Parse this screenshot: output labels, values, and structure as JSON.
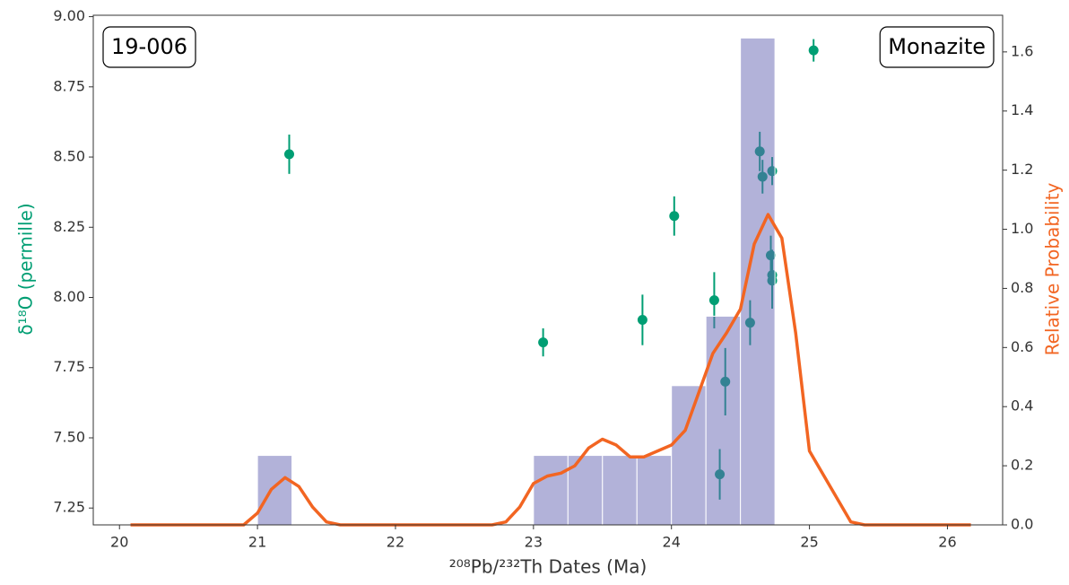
{
  "chart_data": [
    {
      "type": "scatter",
      "xlabel": "²⁰⁸Pb/²³²Th Dates (Ma)",
      "ylabel": "δ¹⁸O (permille)",
      "annotations": [
        "19-006",
        "Monazite"
      ],
      "xlim": [
        19.81,
        26.4
      ],
      "xticks": [
        20,
        21,
        22,
        23,
        24,
        25,
        26
      ],
      "ylim": [
        7.19,
        9.005
      ],
      "yticks": [
        {
          "value": 7.25,
          "label": "7.25"
        },
        {
          "value": 7.5,
          "label": "7.50"
        },
        {
          "value": 7.75,
          "label": "7.75"
        },
        {
          "value": 8.0,
          "label": "8.00"
        },
        {
          "value": 8.25,
          "label": "8.25"
        },
        {
          "value": 8.5,
          "label": "8.50"
        },
        {
          "value": 8.75,
          "label": "8.75"
        },
        {
          "value": 9.0,
          "label": "9.00"
        }
      ],
      "color": "#009e73",
      "x": [
        21.23,
        23.07,
        23.79,
        24.02,
        24.31,
        24.35,
        24.39,
        24.57,
        24.64,
        24.66,
        24.72,
        24.73,
        24.73,
        24.73,
        25.03
      ],
      "values": [
        8.51,
        7.84,
        7.92,
        8.29,
        7.99,
        7.37,
        7.7,
        7.91,
        8.52,
        8.43,
        8.15,
        8.08,
        8.06,
        8.45,
        8.88
      ],
      "errors": [
        0.07,
        0.05,
        0.09,
        0.07,
        0.1,
        0.09,
        0.12,
        0.08,
        0.07,
        0.06,
        0.07,
        0.09,
        0.1,
        0.05,
        0.04
      ]
    },
    {
      "type": "histogram",
      "axis": "y2",
      "y2label": "Relative Probability",
      "y2lim": [
        0,
        1.724
      ],
      "y2ticks": [
        {
          "value": 0,
          "label": "0.0"
        },
        {
          "value": 0.2,
          "label": "0.2"
        },
        {
          "value": 0.4,
          "label": "0.4"
        },
        {
          "value": 0.6,
          "label": "0.6"
        },
        {
          "value": 0.8,
          "label": "0.8"
        },
        {
          "value": 1.0,
          "label": "1.0"
        },
        {
          "value": 1.2,
          "label": "1.2"
        },
        {
          "value": 1.4,
          "label": "1.4"
        },
        {
          "value": 1.6,
          "label": "1.6"
        }
      ],
      "color": "#6666b3",
      "alpha": 0.5,
      "bins": [
        21.0,
        21.25,
        21.5,
        21.75,
        22.0,
        22.25,
        22.5,
        22.75,
        23.0,
        23.25,
        23.5,
        23.75,
        24.0,
        24.25,
        24.5,
        24.75
      ],
      "values": [
        0.235,
        0,
        0,
        0,
        0,
        0,
        0,
        0,
        0.235,
        0.235,
        0.235,
        0.235,
        0.471,
        0.706,
        1.647
      ]
    },
    {
      "type": "line",
      "axis": "y2",
      "color": "#f26522",
      "x": [
        20.08,
        20.9,
        21.0,
        21.1,
        21.2,
        21.3,
        21.4,
        21.5,
        21.6,
        22.7,
        22.8,
        22.9,
        23.0,
        23.1,
        23.2,
        23.3,
        23.4,
        23.5,
        23.6,
        23.7,
        23.8,
        23.9,
        24.0,
        24.1,
        24.2,
        24.3,
        24.4,
        24.5,
        24.6,
        24.7,
        24.8,
        24.9,
        25.0,
        25.1,
        25.2,
        25.3,
        25.4,
        26.17
      ],
      "values": [
        0,
        0,
        0.04,
        0.12,
        0.16,
        0.13,
        0.06,
        0.01,
        0,
        0,
        0.01,
        0.06,
        0.14,
        0.165,
        0.175,
        0.2,
        0.26,
        0.29,
        0.27,
        0.23,
        0.23,
        0.25,
        0.27,
        0.32,
        0.45,
        0.58,
        0.65,
        0.73,
        0.95,
        1.05,
        0.97,
        0.65,
        0.25,
        0.17,
        0.09,
        0.01,
        0,
        0
      ]
    }
  ]
}
